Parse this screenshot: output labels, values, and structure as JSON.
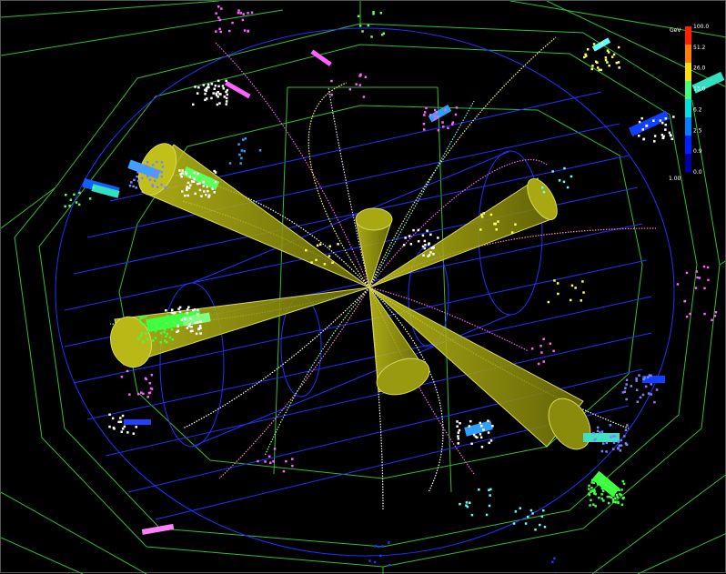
{
  "energy_scale": {
    "unit": "GeV",
    "labels": [
      "100.0",
      "51.2",
      "26.0",
      "13.0",
      "6.2",
      "2.5",
      "0.9",
      "0.0"
    ],
    "bottom_label": "1.00",
    "gradient_colors": [
      "#ff2000",
      "#ff8000",
      "#ffe000",
      "#40ff80",
      "#00e0e0",
      "#0080ff",
      "#0020ff",
      "#0000a0"
    ]
  },
  "colors": {
    "jet_cone": "#9a9a10",
    "detector_lines": "#2fbf2f",
    "barrel_lines": "#2030ff",
    "track_colors": [
      "#ff60ff",
      "#ffffff",
      "#ffff60",
      "#60ffff",
      "#ff80c0",
      "#a0ffa0",
      "#e0e0ff"
    ]
  }
}
